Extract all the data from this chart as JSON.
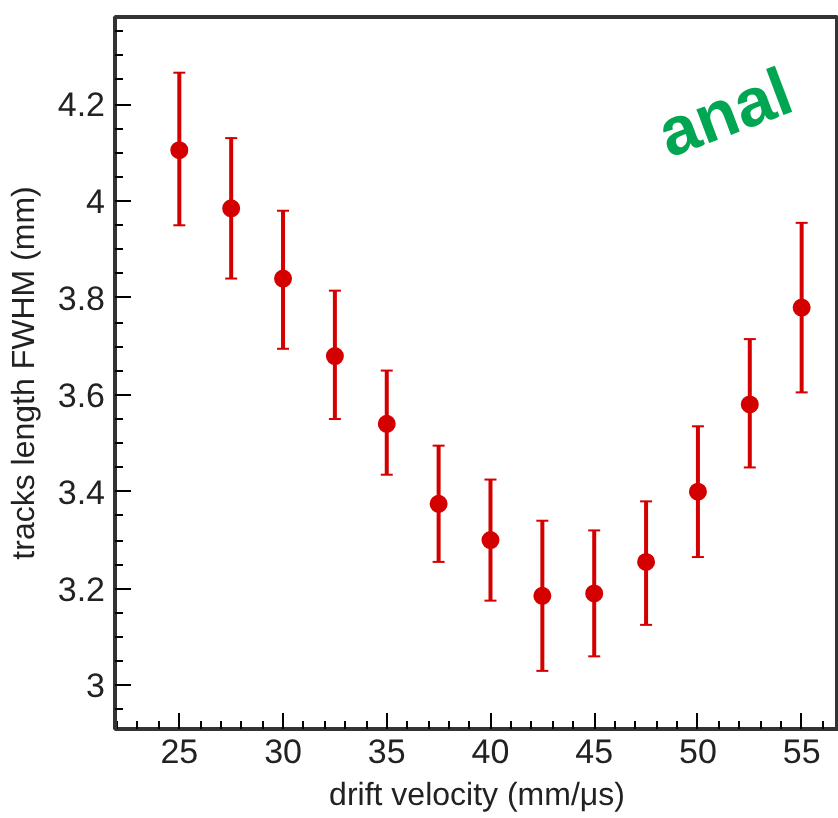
{
  "chart_data": {
    "type": "scatter",
    "xlabel": "drift velocity (mm/μs)",
    "ylabel": "tracks length FWHM (mm)",
    "x": [
      25,
      27.5,
      30,
      32.5,
      35,
      37.5,
      40,
      42.5,
      45,
      47.5,
      50,
      52.5,
      55
    ],
    "series": [
      {
        "color": "#d40000",
        "values": [
          4.105,
          3.985,
          3.84,
          3.68,
          3.54,
          3.375,
          3.3,
          3.185,
          3.19,
          3.255,
          3.4,
          3.58,
          3.78
        ],
        "errors": [
          [
            3.95,
            4.265
          ],
          [
            3.84,
            4.13
          ],
          [
            3.695,
            3.98
          ],
          [
            3.55,
            3.815
          ],
          [
            3.435,
            3.65
          ],
          [
            3.255,
            3.495
          ],
          [
            3.175,
            3.425
          ],
          [
            3.03,
            3.34
          ],
          [
            3.06,
            3.32
          ],
          [
            3.125,
            3.38
          ],
          [
            3.265,
            3.535
          ],
          [
            3.45,
            3.715
          ],
          [
            3.605,
            3.955
          ]
        ]
      }
    ],
    "marker": "circle",
    "xlim": [
      21.9,
      56.8
    ],
    "ylim": [
      2.91,
      4.38
    ],
    "xticks": [
      25,
      30,
      35,
      40,
      45,
      50,
      55
    ],
    "yticks": [
      3,
      3.2,
      3.4,
      3.6,
      3.8,
      4,
      4.2
    ],
    "grid": false,
    "annotations": [
      "anal"
    ]
  }
}
